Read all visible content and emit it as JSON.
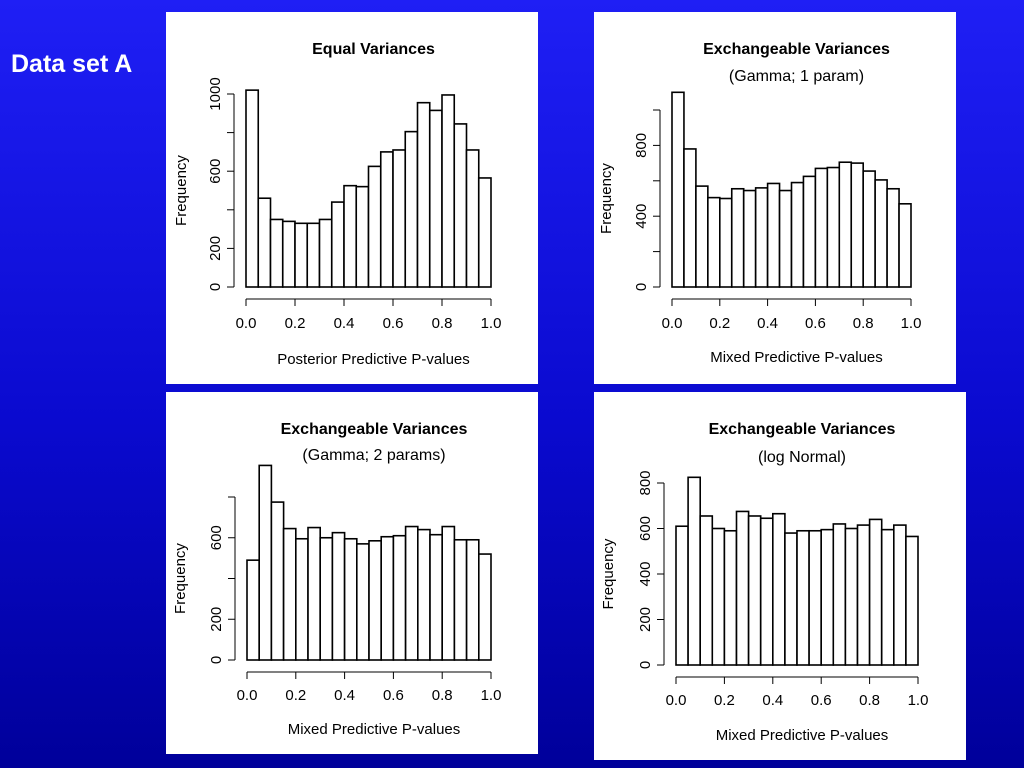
{
  "slide": {
    "title": "Data set A"
  },
  "colors": {
    "background": "#0a0acf",
    "bar_fill": "#ffffff",
    "bar_stroke": "#000000"
  },
  "chart_data": [
    {
      "type": "bar",
      "title": "Equal Variances",
      "subtitle": "",
      "xlabel": "Posterior Predictive P-values",
      "ylabel": "Frequency",
      "x_ticks": [
        "0.0",
        "0.2",
        "0.4",
        "0.6",
        "0.8",
        "1.0"
      ],
      "y_ticks": [
        "0",
        "200",
        "600",
        "1000"
      ],
      "y_minor_ticks": [
        400,
        800
      ],
      "ylim": [
        0,
        1000
      ],
      "xlim": [
        0.0,
        1.0
      ],
      "bin_width": 0.05,
      "bin_starts": [
        0.0,
        0.05,
        0.1,
        0.15,
        0.2,
        0.25,
        0.3,
        0.35,
        0.4,
        0.45,
        0.5,
        0.55,
        0.6,
        0.65,
        0.7,
        0.75,
        0.8,
        0.85,
        0.9,
        0.95
      ],
      "values": [
        1020,
        460,
        350,
        340,
        330,
        330,
        350,
        440,
        525,
        520,
        625,
        700,
        710,
        805,
        955,
        915,
        995,
        845,
        710,
        565
      ],
      "grid": false
    },
    {
      "type": "bar",
      "title": "Exchangeable Variances",
      "subtitle": "(Gamma; 1 param)",
      "xlabel": "Mixed Predictive P-values",
      "ylabel": "Frequency",
      "x_ticks": [
        "0.0",
        "0.2",
        "0.4",
        "0.6",
        "0.8",
        "1.0"
      ],
      "y_ticks": [
        "0",
        "400",
        "800"
      ],
      "y_minor_ticks": [
        200,
        600,
        1000
      ],
      "ylim": [
        0,
        1000
      ],
      "xlim": [
        0.0,
        1.0
      ],
      "bin_width": 0.05,
      "bin_starts": [
        0.0,
        0.05,
        0.1,
        0.15,
        0.2,
        0.25,
        0.3,
        0.35,
        0.4,
        0.45,
        0.5,
        0.55,
        0.6,
        0.65,
        0.7,
        0.75,
        0.8,
        0.85,
        0.9,
        0.95
      ],
      "values": [
        1100,
        780,
        570,
        505,
        500,
        555,
        545,
        560,
        585,
        545,
        590,
        625,
        670,
        675,
        705,
        700,
        655,
        605,
        555,
        470
      ],
      "grid": false
    },
    {
      "type": "bar",
      "title": "Exchangeable Variances",
      "subtitle": "(Gamma; 2 params)",
      "xlabel": "Mixed Predictive P-values",
      "ylabel": "Frequency",
      "x_ticks": [
        "0.0",
        "0.2",
        "0.4",
        "0.6",
        "0.8",
        "1.0"
      ],
      "y_ticks": [
        "0",
        "200",
        "600"
      ],
      "y_minor_ticks": [
        400,
        800
      ],
      "ylim": [
        0,
        800
      ],
      "xlim": [
        0.0,
        1.0
      ],
      "bin_width": 0.05,
      "bin_starts": [
        0.0,
        0.05,
        0.1,
        0.15,
        0.2,
        0.25,
        0.3,
        0.35,
        0.4,
        0.45,
        0.5,
        0.55,
        0.6,
        0.65,
        0.7,
        0.75,
        0.8,
        0.85,
        0.9,
        0.95
      ],
      "values": [
        490,
        955,
        775,
        645,
        595,
        650,
        600,
        625,
        595,
        570,
        585,
        605,
        610,
        655,
        640,
        615,
        655,
        590,
        590,
        520
      ],
      "grid": false
    },
    {
      "type": "bar",
      "title": "Exchangeable Variances",
      "subtitle": "(log Normal)",
      "xlabel": "Mixed Predictive P-values",
      "ylabel": "Frequency",
      "x_ticks": [
        "0.0",
        "0.2",
        "0.4",
        "0.6",
        "0.8",
        "1.0"
      ],
      "y_ticks": [
        "0",
        "200",
        "400",
        "600",
        "800"
      ],
      "y_minor_ticks": [],
      "ylim": [
        0,
        800
      ],
      "xlim": [
        0.0,
        1.0
      ],
      "bin_width": 0.05,
      "bin_starts": [
        0.0,
        0.05,
        0.1,
        0.15,
        0.2,
        0.25,
        0.3,
        0.35,
        0.4,
        0.45,
        0.5,
        0.55,
        0.6,
        0.65,
        0.7,
        0.75,
        0.8,
        0.85,
        0.9,
        0.95
      ],
      "values": [
        610,
        825,
        655,
        600,
        590,
        675,
        655,
        645,
        665,
        580,
        590,
        590,
        595,
        620,
        600,
        615,
        640,
        595,
        615,
        565
      ],
      "grid": false
    }
  ]
}
